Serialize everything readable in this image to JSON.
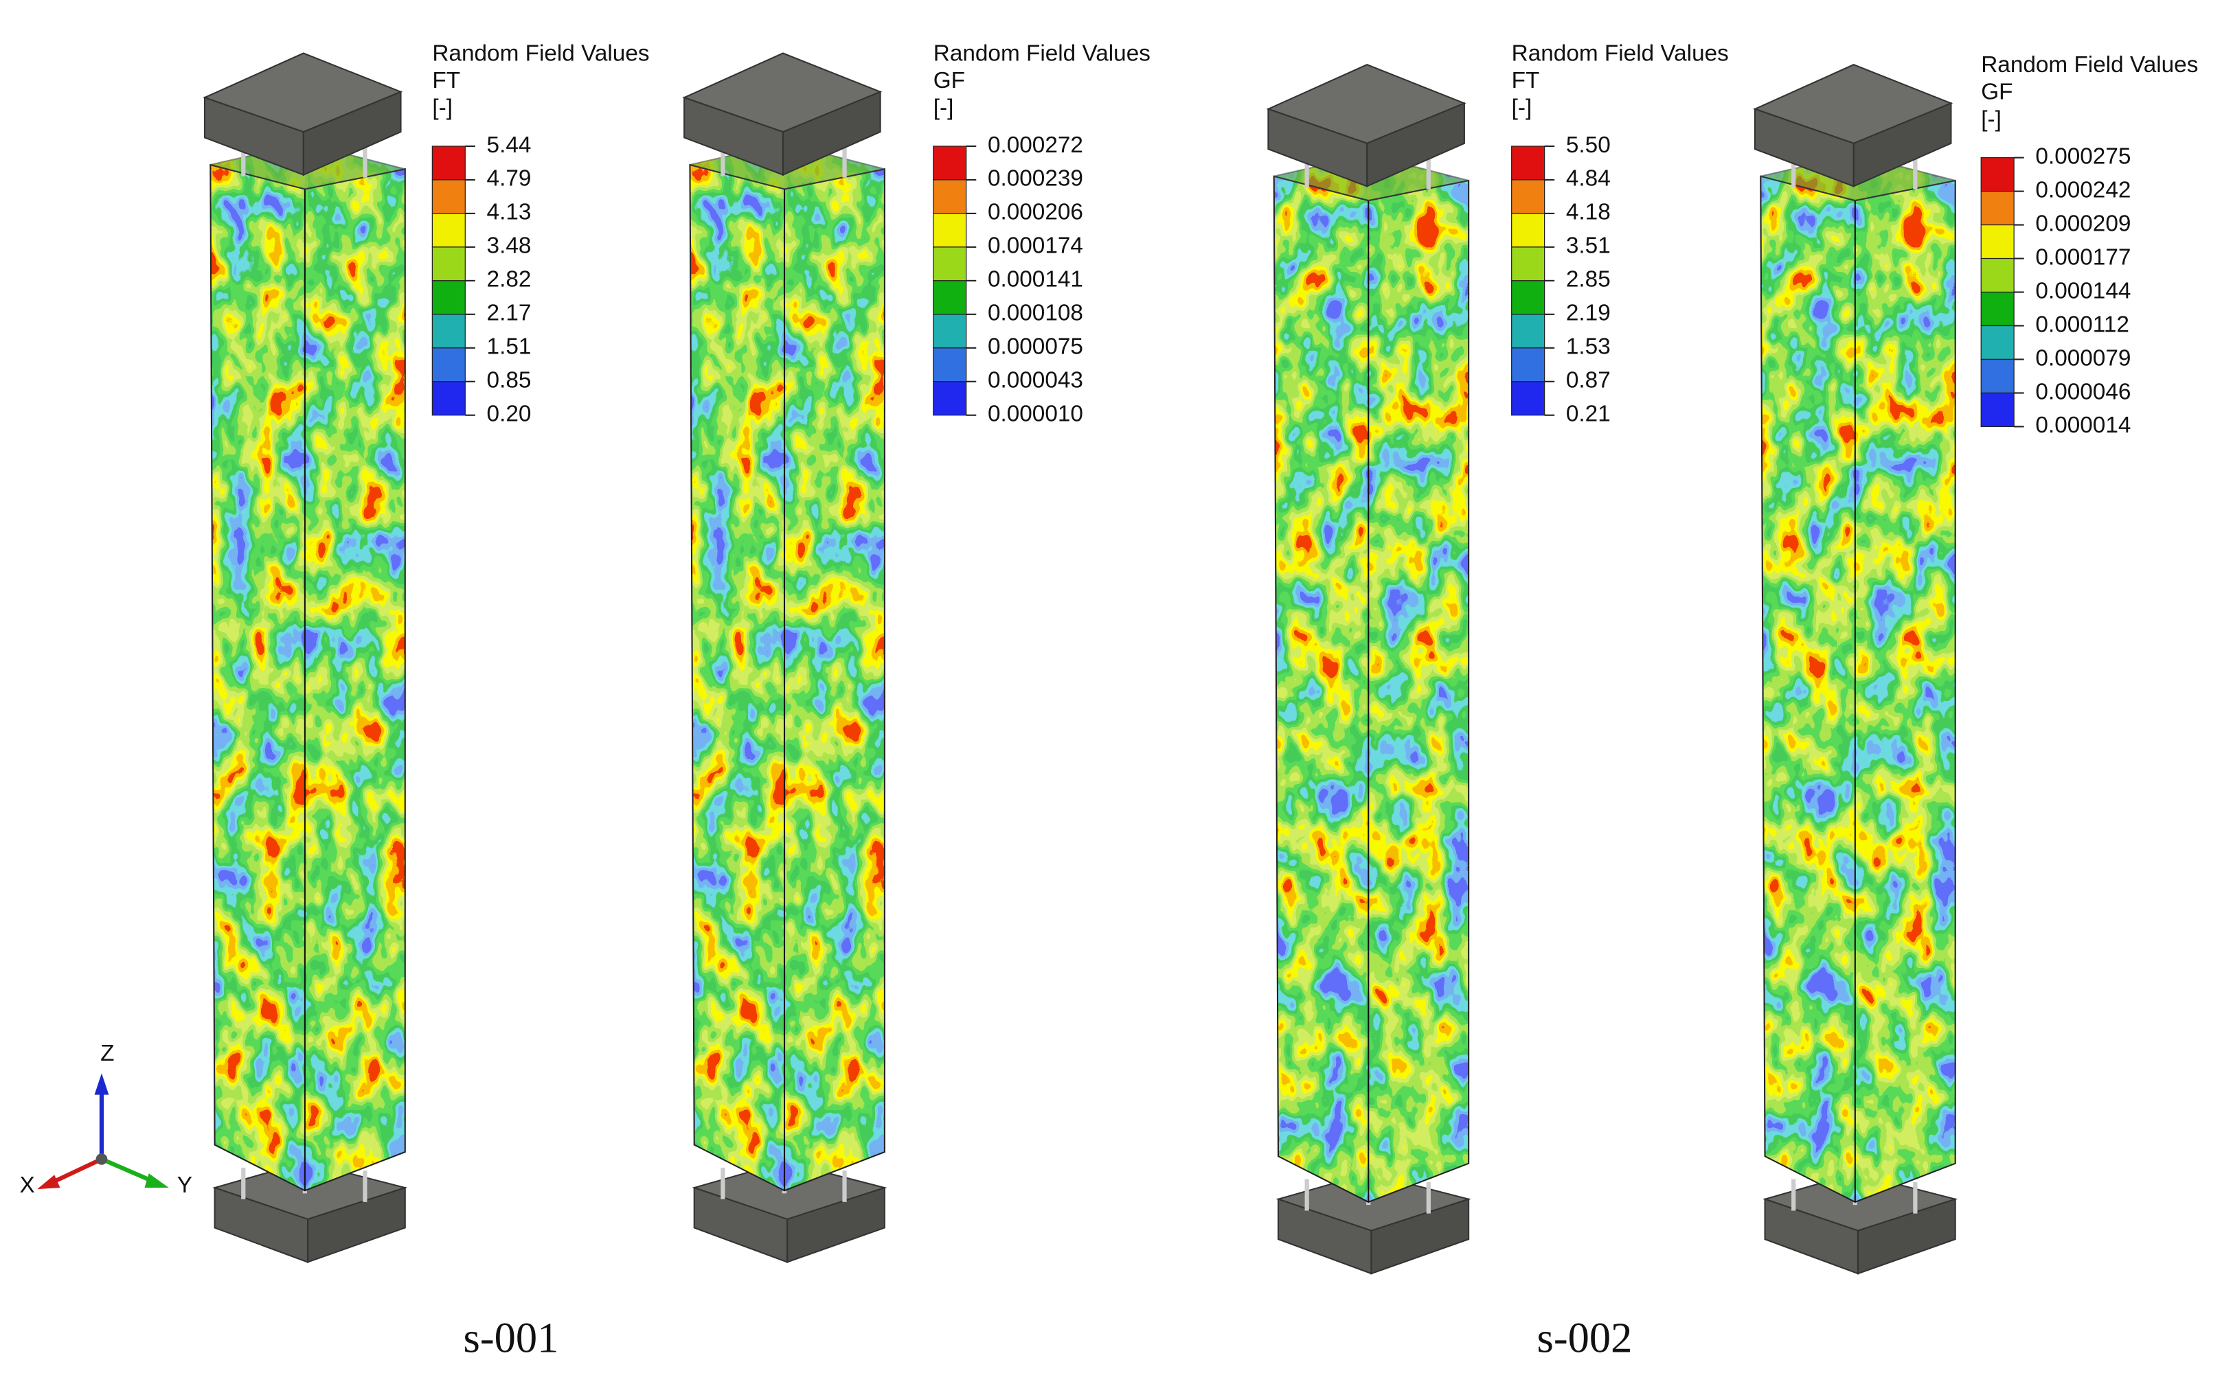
{
  "panels": [
    {
      "legend": {
        "title": "Random Field Values",
        "variable": "FT",
        "unit": "[-]",
        "values": [
          "5.44",
          "4.79",
          "4.13",
          "3.48",
          "2.82",
          "2.17",
          "1.51",
          "0.85",
          "0.20"
        ]
      }
    },
    {
      "legend": {
        "title": "Random Field Values",
        "variable": "GF",
        "unit": "[-]",
        "values": [
          "0.000272",
          "0.000239",
          "0.000206",
          "0.000174",
          "0.000141",
          "0.000108",
          "0.000075",
          "0.000043",
          "0.000010"
        ]
      }
    },
    {
      "legend": {
        "title": "Random Field Values",
        "variable": "FT",
        "unit": "[-]",
        "values": [
          "5.50",
          "4.84",
          "4.18",
          "3.51",
          "2.85",
          "2.19",
          "1.53",
          "0.87",
          "0.21"
        ]
      }
    },
    {
      "legend": {
        "title": "Random Field Values",
        "variable": "GF",
        "unit": "[-]",
        "values": [
          "0.000275",
          "0.000242",
          "0.000209",
          "0.000177",
          "0.000144",
          "0.000112",
          "0.000079",
          "0.000046",
          "0.000014"
        ]
      }
    }
  ],
  "captions": [
    "s-001",
    "s-002"
  ],
  "axes": {
    "x": "X",
    "y": "Y",
    "z": "Z"
  }
}
